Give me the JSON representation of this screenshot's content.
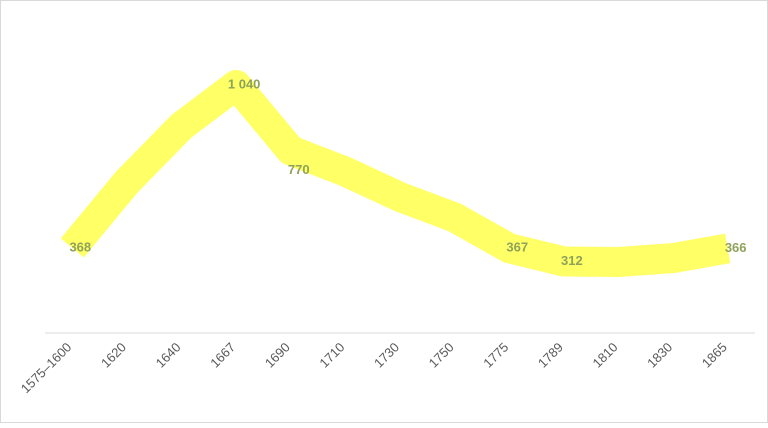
{
  "chart_data": {
    "type": "line",
    "categories": [
      "1575–1600",
      "1620",
      "1640",
      "1667",
      "1690",
      "1710",
      "1730",
      "1750",
      "1775",
      "1789",
      "1810",
      "1830",
      "1865"
    ],
    "values": [
      368,
      640,
      870,
      1040,
      770,
      683,
      578,
      494,
      367,
      312,
      310,
      326,
      366
    ],
    "value_labels": [
      "368",
      null,
      null,
      "1 040",
      "770",
      null,
      null,
      null,
      "367",
      "312",
      null,
      null,
      "366"
    ],
    "color": "#ffff66"
  }
}
